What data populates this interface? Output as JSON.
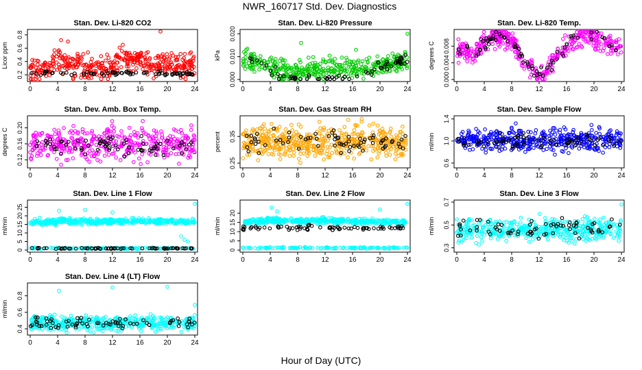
{
  "page": {
    "title": "NWR_160717  Std. Dev. Diagnostics",
    "xlabel": "Hour of Day (UTC)"
  },
  "colors": {
    "black_series": "#000000",
    "axis": "#000000"
  },
  "chart_data": [
    {
      "id": "co2",
      "type": "scatter",
      "title": "Stan. Dev. Li-820 CO2",
      "ylabel": "Licor ppm",
      "color": "#ff0000",
      "xlim": [
        0,
        24
      ],
      "ylim": [
        0.13,
        0.85
      ],
      "xticks": [
        "0",
        "4",
        "8",
        "12",
        "16",
        "20",
        "24"
      ],
      "yticks": [
        "0.2",
        "0.4",
        "0.6",
        "0.8"
      ],
      "ytick_values": [
        0.2,
        0.4,
        0.6,
        0.8
      ],
      "series": [
        {
          "color": "#ff0000",
          "trend": [
            [
              0,
              0.26
            ],
            [
              3,
              0.33
            ],
            [
              4,
              0.42
            ],
            [
              6,
              0.34
            ],
            [
              8,
              0.3
            ],
            [
              10,
              0.28
            ],
            [
              12,
              0.3
            ],
            [
              13,
              0.45
            ],
            [
              15,
              0.45
            ],
            [
              17,
              0.36
            ],
            [
              20,
              0.4
            ],
            [
              24,
              0.32
            ]
          ],
          "spread": 0.09,
          "count": 430,
          "outliers": [
            [
              19,
              0.85
            ],
            [
              4.5,
              0.72
            ],
            [
              5.5,
              0.7
            ],
            [
              13.5,
              0.65
            ]
          ]
        },
        {
          "color": "#000000",
          "trend": [
            [
              0,
              0.22
            ],
            [
              24,
              0.22
            ]
          ],
          "spread": 0.015,
          "count": 75
        }
      ]
    },
    {
      "id": "pressure",
      "type": "scatter",
      "title": "Stan. Dev. Li-820 Pressure",
      "ylabel": "kPa",
      "color": "#00cc00",
      "xlim": [
        0,
        24
      ],
      "ylim": [
        0,
        0.021
      ],
      "xticks": [
        "0",
        "4",
        "8",
        "12",
        "16",
        "20",
        "24"
      ],
      "yticks": [
        "0.000",
        "0.010",
        "0.020"
      ],
      "ytick_values": [
        0,
        0.01,
        0.02
      ],
      "series": [
        {
          "color": "#00cc00",
          "trend": [
            [
              0,
              0.008
            ],
            [
              2,
              0.008
            ],
            [
              5,
              0.004
            ],
            [
              7,
              0.003
            ],
            [
              12,
              0.005
            ],
            [
              16,
              0.005
            ],
            [
              19,
              0.006
            ],
            [
              24,
              0.008
            ]
          ],
          "spread": 0.0022,
          "count": 420,
          "outliers": [
            [
              24,
              0.02
            ],
            [
              0.5,
              0.013
            ],
            [
              8.5,
              0.016
            ],
            [
              16.5,
              0.013
            ]
          ]
        },
        {
          "color": "#000000",
          "trend": [
            [
              0,
              0.009
            ],
            [
              2,
              0.008
            ],
            [
              4,
              0.004
            ],
            [
              6,
              0.001
            ],
            [
              12,
              0.0005
            ],
            [
              16,
              0.0005
            ],
            [
              18,
              0.003
            ],
            [
              20,
              0.006
            ],
            [
              24,
              0.009
            ]
          ],
          "spread": 0.0013,
          "count": 70
        }
      ]
    },
    {
      "id": "temp",
      "type": "scatter",
      "title": "Stan. Dev. Li-820 Temp.",
      "ylabel": "degrees C",
      "color": "#ff00ff",
      "xlim": [
        0,
        24
      ],
      "ylim": [
        0,
        0.0115
      ],
      "xticks": [
        "0",
        "4",
        "8",
        "12",
        "16",
        "20",
        "24"
      ],
      "yticks": [
        "0.000",
        "0.004",
        "0.008"
      ],
      "ytick_values": [
        0,
        0.004,
        0.008
      ],
      "series": [
        {
          "color": "#ff00ff",
          "trend": [
            [
              0,
              0.007
            ],
            [
              2,
              0.006
            ],
            [
              4,
              0.0085
            ],
            [
              6,
              0.011
            ],
            [
              8,
              0.0095
            ],
            [
              10,
              0.004
            ],
            [
              11.5,
              0.001
            ],
            [
              13,
              0.002
            ],
            [
              15,
              0.0065
            ],
            [
              17,
              0.0095
            ],
            [
              19,
              0.0112
            ],
            [
              21,
              0.009
            ],
            [
              24,
              0.0075
            ]
          ],
          "spread": 0.0012,
          "count": 430
        },
        {
          "color": "#000000",
          "trend": [
            [
              0,
              0.006
            ],
            [
              4,
              0.008
            ],
            [
              6,
              0.011
            ],
            [
              8,
              0.009
            ],
            [
              10,
              0.004
            ],
            [
              12,
              0.001
            ],
            [
              14,
              0.004
            ],
            [
              17,
              0.009
            ],
            [
              19,
              0.011
            ],
            [
              22,
              0.009
            ],
            [
              24,
              0.007
            ]
          ],
          "spread": 0.001,
          "count": 70
        }
      ]
    },
    {
      "id": "boxtemp",
      "type": "scatter",
      "title": "Stan. Dev. Amb. Box Temp.",
      "ylabel": "degrees C",
      "color": "#ff00ff",
      "xlim": [
        0,
        24
      ],
      "ylim": [
        0.105,
        0.225
      ],
      "xticks": [
        "0",
        "4",
        "8",
        "12",
        "16",
        "20",
        "24"
      ],
      "yticks": [
        "0.12",
        "0.16",
        "0.20"
      ],
      "ytick_values": [
        0.12,
        0.16,
        0.2
      ],
      "series": [
        {
          "color": "#ff00ff",
          "trend": [
            [
              0,
              0.16
            ],
            [
              24,
              0.16
            ]
          ],
          "spread": 0.02,
          "count": 430
        },
        {
          "color": "#000000",
          "trend": [
            [
              0,
              0.155
            ],
            [
              24,
              0.155
            ]
          ],
          "spread": 0.012,
          "count": 70
        }
      ]
    },
    {
      "id": "rh",
      "type": "scatter",
      "title": "Stan. Dev. Gas Stream RH",
      "ylabel": "percent",
      "color": "#ffa500",
      "xlim": [
        0,
        24
      ],
      "ylim": [
        0.24,
        0.42
      ],
      "xticks": [
        "0",
        "4",
        "8",
        "12",
        "16",
        "20",
        "24"
      ],
      "yticks": [
        "0.25",
        "0.35"
      ],
      "ytick_values": [
        0.25,
        0.35
      ],
      "series": [
        {
          "color": "#ffa500",
          "trend": [
            [
              0,
              0.33
            ],
            [
              24,
              0.33
            ]
          ],
          "spread": 0.03,
          "count": 520
        },
        {
          "color": "#000000",
          "trend": [
            [
              0,
              0.33
            ],
            [
              24,
              0.33
            ]
          ],
          "spread": 0.02,
          "count": 70
        }
      ]
    },
    {
      "id": "sampleflow",
      "type": "scatter",
      "title": "Stan. Dev. Sample Flow",
      "ylabel": "ml/min",
      "color": "#0000ff",
      "xlim": [
        0,
        24
      ],
      "ylim": [
        0.55,
        1.42
      ],
      "xticks": [
        "0",
        "4",
        "8",
        "12",
        "16",
        "20",
        "24"
      ],
      "yticks": [
        "0.6",
        "1.0",
        "1.4"
      ],
      "ytick_values": [
        0.6,
        1.0,
        1.4
      ],
      "series": [
        {
          "color": "#0000ff",
          "trend": [
            [
              0,
              1.02
            ],
            [
              24,
              1.02
            ]
          ],
          "spread": 0.1,
          "count": 430
        },
        {
          "color": "#000000",
          "trend": [
            [
              0,
              1.0
            ],
            [
              24,
              1.0
            ]
          ],
          "spread": 0.06,
          "count": 70
        }
      ]
    },
    {
      "id": "line1",
      "type": "scatter",
      "title": "Stan. Dev. Line 1 Flow",
      "ylabel": "ml/min",
      "color": "#00ffff",
      "xlim": [
        0,
        24
      ],
      "ylim": [
        0,
        28
      ],
      "xticks": [
        "0",
        "4",
        "8",
        "12",
        "16",
        "20",
        "24"
      ],
      "yticks": [
        "0",
        "5",
        "10",
        "15",
        "20",
        "25"
      ],
      "ytick_values": [
        0,
        5,
        10,
        15,
        20,
        25
      ],
      "series": [
        {
          "color": "#00ffff",
          "trend": [
            [
              0,
              16.5
            ],
            [
              4,
              16.5
            ],
            [
              5,
              18
            ],
            [
              6,
              16.5
            ],
            [
              14,
              17
            ],
            [
              24,
              16.5
            ]
          ],
          "spread": 0.8,
          "count": 430,
          "outliers": [
            [
              4.2,
              23
            ],
            [
              8,
              23.5
            ],
            [
              12,
              22
            ],
            [
              24,
              27
            ],
            [
              22,
              8
            ],
            [
              22.5,
              6
            ],
            [
              23,
              5
            ]
          ]
        },
        {
          "color": "#00ffff",
          "trend": [
            [
              0,
              1
            ],
            [
              24,
              1
            ]
          ],
          "spread": 0.2,
          "count": 120
        },
        {
          "color": "#000000",
          "trend": [
            [
              0,
              1
            ],
            [
              24,
              1
            ]
          ],
          "spread": 0.15,
          "count": 70
        }
      ]
    },
    {
      "id": "line2",
      "type": "scatter",
      "title": "Stan. Dev. Line 2 Flow",
      "ylabel": "ml/min",
      "color": "#00ffff",
      "xlim": [
        0,
        24
      ],
      "ylim": [
        0,
        26
      ],
      "xticks": [
        "0",
        "4",
        "8",
        "12",
        "16",
        "20",
        "24"
      ],
      "yticks": [
        "0",
        "5",
        "10",
        "15",
        "20"
      ],
      "ytick_values": [
        0,
        5,
        10,
        15,
        20
      ],
      "series": [
        {
          "color": "#00ffff",
          "trend": [
            [
              0,
              15
            ],
            [
              5,
              16
            ],
            [
              12,
              16
            ],
            [
              24,
              15
            ]
          ],
          "spread": 0.8,
          "count": 400,
          "outliers": [
            [
              4.2,
              23
            ],
            [
              5,
              21
            ],
            [
              24,
              25
            ],
            [
              20,
              22
            ]
          ]
        },
        {
          "color": "#00ffff",
          "trend": [
            [
              0,
              1.2
            ],
            [
              24,
              1.2
            ]
          ],
          "spread": 0.2,
          "count": 120
        },
        {
          "color": "#000000",
          "trend": [
            [
              0,
              12
            ],
            [
              24,
              12
            ]
          ],
          "spread": 0.6,
          "count": 75
        }
      ]
    },
    {
      "id": "line3",
      "type": "scatter",
      "title": "Stan. Dev. Line 3 Flow",
      "ylabel": "ml/min",
      "color": "#00ffff",
      "xlim": [
        0,
        24
      ],
      "ylim": [
        0.28,
        0.7
      ],
      "xticks": [
        "0",
        "4",
        "8",
        "12",
        "16",
        "20",
        "24"
      ],
      "yticks": [
        "0.3",
        "0.5",
        "0.7"
      ],
      "ytick_values": [
        0.3,
        0.5,
        0.7
      ],
      "series": [
        {
          "color": "#00ffff",
          "trend": [
            [
              0,
              0.46
            ],
            [
              24,
              0.46
            ]
          ],
          "spread": 0.05,
          "count": 430,
          "outliers": [
            [
              24,
              0.68
            ]
          ]
        },
        {
          "color": "#000000",
          "trend": [
            [
              0,
              0.47
            ],
            [
              24,
              0.47
            ]
          ],
          "spread": 0.04,
          "count": 70
        }
      ]
    },
    {
      "id": "line4",
      "type": "scatter",
      "title": "Stan. Dev. Line 4 (LT) Flow",
      "ylabel": "ml/min",
      "color": "#00ffff",
      "xlim": [
        0,
        24
      ],
      "ylim": [
        0.35,
        0.93
      ],
      "xticks": [
        "0",
        "4",
        "8",
        "12",
        "16",
        "20",
        "24"
      ],
      "yticks": [
        "0.4",
        "0.6",
        "0.8"
      ],
      "ytick_values": [
        0.4,
        0.6,
        0.8
      ],
      "series": [
        {
          "color": "#00ffff",
          "trend": [
            [
              0,
              0.47
            ],
            [
              24,
              0.47
            ]
          ],
          "spread": 0.045,
          "count": 430,
          "outliers": [
            [
              4.2,
              0.86
            ],
            [
              12,
              0.9
            ],
            [
              20,
              0.91
            ],
            [
              24,
              0.69
            ]
          ]
        },
        {
          "color": "#000000",
          "trend": [
            [
              0,
              0.47
            ],
            [
              24,
              0.47
            ]
          ],
          "spread": 0.035,
          "count": 70
        }
      ]
    }
  ]
}
